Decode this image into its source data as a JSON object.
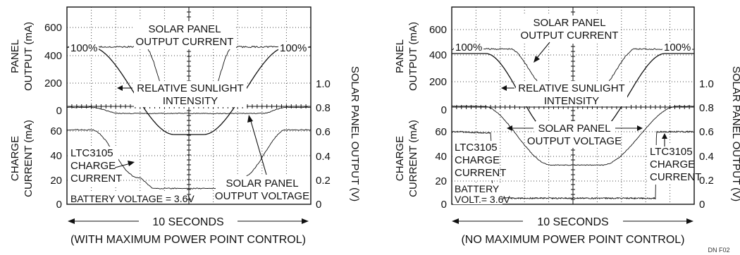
{
  "chart_data": [
    {
      "type": "line",
      "caption_time": "10 SECONDS",
      "caption": "(WITH MAXIMUM POWER POINT CONTROL)",
      "left_axis_top": {
        "label_line1": "PANEL",
        "label_line2": "OUTPUT (mA)",
        "ticks": [
          "600",
          "400",
          "200",
          "0"
        ]
      },
      "left_axis_bottom": {
        "label_line1": "CHARGE",
        "label_line2": "CURRENT (mA)",
        "ticks": [
          "60",
          "40",
          "20",
          "0"
        ]
      },
      "right_axis": {
        "label": "SOLAR PANEL OUTPUT (V)",
        "ticks": [
          "1.0",
          "0.8",
          "0.6",
          "0.4",
          "0.2",
          "0"
        ]
      },
      "annotations": {
        "panel_current_1": "SOLAR PANEL",
        "panel_current_2": "OUTPUT CURRENT",
        "pct_left": "100%",
        "pct_right": "100%",
        "sunlight_1": "RELATIVE SUNLIGHT",
        "sunlight_2": "INTENSITY",
        "charge_1": "LTC3105",
        "charge_2": "CHARGE",
        "charge_3": "CURRENT",
        "battery": "BATTERY VOLTAGE = 3.6V",
        "voltage_1": "SOLAR PANEL",
        "voltage_2": "OUTPUT VOLTAGE"
      },
      "series_points": {
        "panel_current_mA": [
          [
            0,
            460
          ],
          [
            3.2,
            460
          ],
          [
            4.2,
            80
          ],
          [
            5.8,
            80
          ],
          [
            6.8,
            460
          ],
          [
            10,
            460
          ]
        ],
        "relative_sunlight_pct": [
          [
            0,
            100
          ],
          [
            1.0,
            100
          ],
          [
            4.4,
            0
          ],
          [
            5.6,
            0
          ],
          [
            9.0,
            100
          ],
          [
            10,
            100
          ]
        ],
        "charge_current_mA": [
          [
            0,
            61
          ],
          [
            1.0,
            61
          ],
          [
            2.9,
            22
          ],
          [
            3.6,
            13
          ],
          [
            6.4,
            13
          ],
          [
            7.2,
            22
          ],
          [
            9.0,
            61
          ],
          [
            10,
            61
          ]
        ],
        "panel_voltage_V": [
          [
            0,
            0.8
          ],
          [
            1.0,
            0.8
          ],
          [
            2.2,
            0.75
          ],
          [
            8.0,
            0.75
          ],
          [
            9.0,
            0.8
          ],
          [
            10,
            0.8
          ]
        ]
      }
    },
    {
      "type": "line",
      "caption_time": "10 SECONDS",
      "caption": "(NO MAXIMUM POWER POINT CONTROL)",
      "left_axis_top": {
        "label_line1": "PANEL",
        "label_line2": "OUTPUT (mA)",
        "ticks": [
          "600",
          "400",
          "200",
          "0"
        ]
      },
      "left_axis_bottom": {
        "label_line1": "CHARGE",
        "label_line2": "CURRENT (mA)",
        "ticks": [
          "60",
          "40",
          "20",
          "0"
        ]
      },
      "right_axis": {
        "label": "SOLAR PANEL OUTPUT (V)",
        "ticks": [
          "1.0",
          "0.8",
          "0.6",
          "0.4",
          "0.2",
          "0"
        ]
      },
      "annotations": {
        "panel_current_1": "SOLAR PANEL",
        "panel_current_2": "OUTPUT CURRENT",
        "pct_left": "100%",
        "pct_right": "100%",
        "sunlight_1": "RELATIVE SUNLIGHT",
        "sunlight_2": "INTENSITY",
        "voltage_1": "SOLAR PANEL",
        "voltage_2": "OUTPUT VOLTAGE",
        "charge_left_1": "LTC3105",
        "charge_left_2": "CHARGE",
        "charge_left_3": "CURRENT",
        "battery_1": "BATTERY",
        "battery_2": "VOLT.= 3.6V",
        "charge_right_1": "LTC3105",
        "charge_right_2": "CHARGE",
        "charge_right_3": "CURRENT"
      },
      "series_points": {
        "panel_current_mA": [
          [
            0,
            450
          ],
          [
            2.4,
            450
          ],
          [
            4.0,
            130
          ],
          [
            6.0,
            130
          ],
          [
            7.6,
            450
          ],
          [
            10,
            450
          ]
        ],
        "relative_sunlight_pct": [
          [
            0,
            100
          ],
          [
            1.4,
            100
          ],
          [
            4.2,
            0
          ],
          [
            5.8,
            0
          ],
          [
            8.8,
            100
          ],
          [
            10,
            100
          ]
        ],
        "panel_voltage_V": [
          [
            0,
            0.8
          ],
          [
            1.3,
            0.8
          ],
          [
            4.1,
            0.32
          ],
          [
            6.2,
            0.32
          ],
          [
            9.3,
            0.8
          ],
          [
            10,
            0.8
          ]
        ],
        "charge_current_mA": [
          [
            0,
            60
          ],
          [
            1.6,
            59
          ],
          [
            1.7,
            5
          ],
          [
            5.1,
            5
          ],
          [
            8.4,
            5
          ],
          [
            8.45,
            60
          ],
          [
            10,
            60
          ]
        ]
      }
    }
  ],
  "figure_tag": "DN F02"
}
